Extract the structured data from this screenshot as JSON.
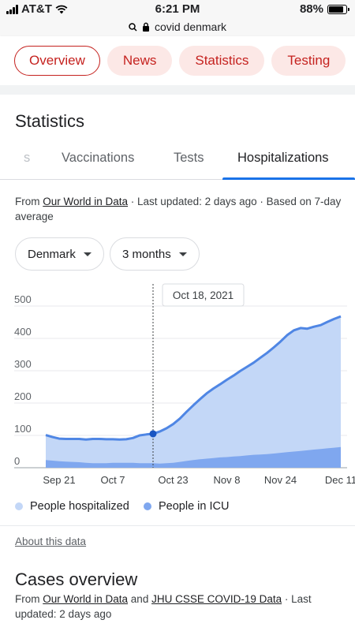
{
  "status_bar": {
    "carrier": "AT&T",
    "time": "6:21 PM",
    "battery": "88%",
    "battery_level": 0.88
  },
  "browser": {
    "url": "covid denmark"
  },
  "chips": [
    "Overview",
    "News",
    "Statistics",
    "Testing"
  ],
  "active_chip": "Overview",
  "section_title": "Statistics",
  "tabs": [
    "s",
    "Vaccinations",
    "Tests",
    "Hospitalizations"
  ],
  "active_tab": "Hospitalizations",
  "source": {
    "prefix": "From ",
    "link": "Our World in Data",
    "suffix": " · Last updated: 2 days ago · Based on 7-day average"
  },
  "filters": {
    "country": "Denmark",
    "range": "3 months"
  },
  "tooltip": {
    "date": "Oct 18, 2021"
  },
  "chart_data": {
    "type": "area",
    "x": [
      "Sep 17",
      "Sep 19",
      "Sep 21",
      "Sep 23",
      "Sep 25",
      "Sep 27",
      "Sep 29",
      "Oct 1",
      "Oct 3",
      "Oct 5",
      "Oct 7",
      "Oct 9",
      "Oct 11",
      "Oct 13",
      "Oct 15",
      "Oct 17",
      "Oct 18",
      "Oct 19",
      "Oct 21",
      "Oct 23",
      "Oct 25",
      "Oct 27",
      "Oct 29",
      "Oct 31",
      "Nov 2",
      "Nov 4",
      "Nov 6",
      "Nov 8",
      "Nov 10",
      "Nov 12",
      "Nov 14",
      "Nov 16",
      "Nov 18",
      "Nov 20",
      "Nov 22",
      "Nov 24",
      "Nov 26",
      "Nov 28",
      "Nov 30",
      "Dec 2",
      "Dec 4",
      "Dec 6",
      "Dec 8",
      "Dec 10",
      "Dec 12"
    ],
    "x_ticks": [
      "Sep 21",
      "Oct 7",
      "Oct 23",
      "Nov 8",
      "Nov 24",
      "Dec 11"
    ],
    "y_ticks": [
      0,
      100,
      200,
      300,
      400,
      500
    ],
    "ylim": [
      0,
      500
    ],
    "series": [
      {
        "name": "People hospitalized",
        "values": [
          101,
          95,
          90,
          89,
          89,
          89,
          87,
          89,
          89,
          88,
          88,
          87,
          88,
          92,
          100,
          103,
          105,
          112,
          122,
          135,
          152,
          173,
          193,
          212,
          230,
          245,
          258,
          272,
          285,
          299,
          312,
          325,
          340,
          355,
          372,
          390,
          410,
          425,
          432,
          430,
          436,
          441,
          451,
          460,
          468
        ]
      },
      {
        "name": "People in ICU",
        "values": [
          24,
          22,
          20,
          19,
          18,
          17,
          15,
          14,
          14,
          14,
          15,
          15,
          15,
          15,
          14,
          14,
          14,
          13,
          14,
          15,
          18,
          21,
          24,
          26,
          28,
          30,
          32,
          33,
          35,
          36,
          38,
          40,
          41,
          42,
          44,
          46,
          48,
          50,
          52,
          54,
          56,
          58,
          60,
          62,
          64
        ]
      }
    ],
    "tooltip_x": "Oct 18",
    "colors": {
      "hospitalized_fill": "#c3d7f7",
      "hospitalized_line": "#4f86e4",
      "icu_fill": "#7fa7ef",
      "marker": "#1a56c2"
    }
  },
  "about_link": "About this data",
  "cases": {
    "title": "Cases overview",
    "prefix": "From ",
    "link1": "Our World in Data",
    "middle": " and ",
    "link2": "JHU CSSE COVID-19 Data",
    "suffix": " · Last updated: 2 days ago"
  }
}
